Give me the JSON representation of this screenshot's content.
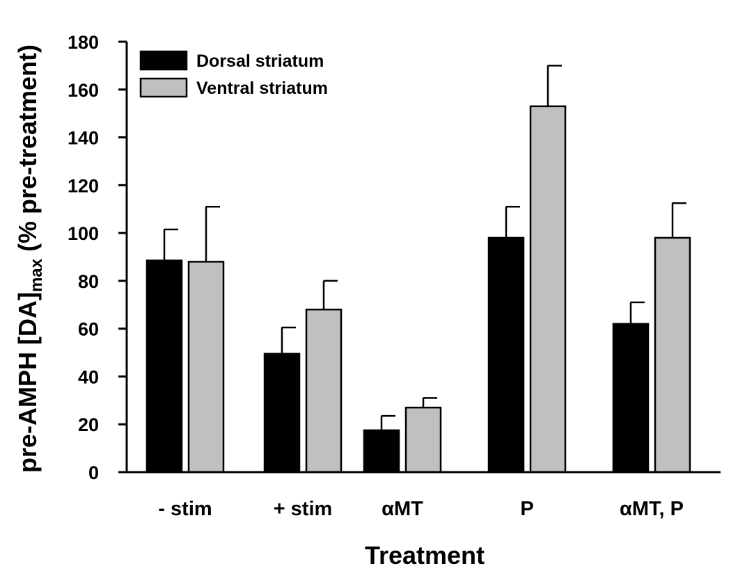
{
  "chart_data": {
    "type": "bar",
    "categories": [
      "- stim",
      "+ stim",
      "αMT",
      "P",
      "αMT, P"
    ],
    "series": [
      {
        "name": "Dorsal striatum",
        "color": "#000000",
        "values": [
          88.5,
          49.5,
          17.5,
          98,
          62
        ],
        "errors": [
          13,
          11,
          6,
          13,
          9
        ]
      },
      {
        "name": "Ventral striatum",
        "color": "#c0c0c0",
        "values": [
          88,
          68,
          27,
          153,
          98
        ],
        "errors": [
          23,
          12,
          4,
          17,
          14.5
        ]
      }
    ],
    "xlabel": "Treatment",
    "ylabel": {
      "main": "pre-AMPH [DA]",
      "subscript": "max",
      "suffix": " (% pre-treatment)"
    },
    "ylim": [
      0,
      180
    ],
    "yticks": [
      0,
      20,
      40,
      60,
      80,
      100,
      120,
      140,
      160,
      180
    ],
    "grid": false,
    "legend": "top-left"
  }
}
